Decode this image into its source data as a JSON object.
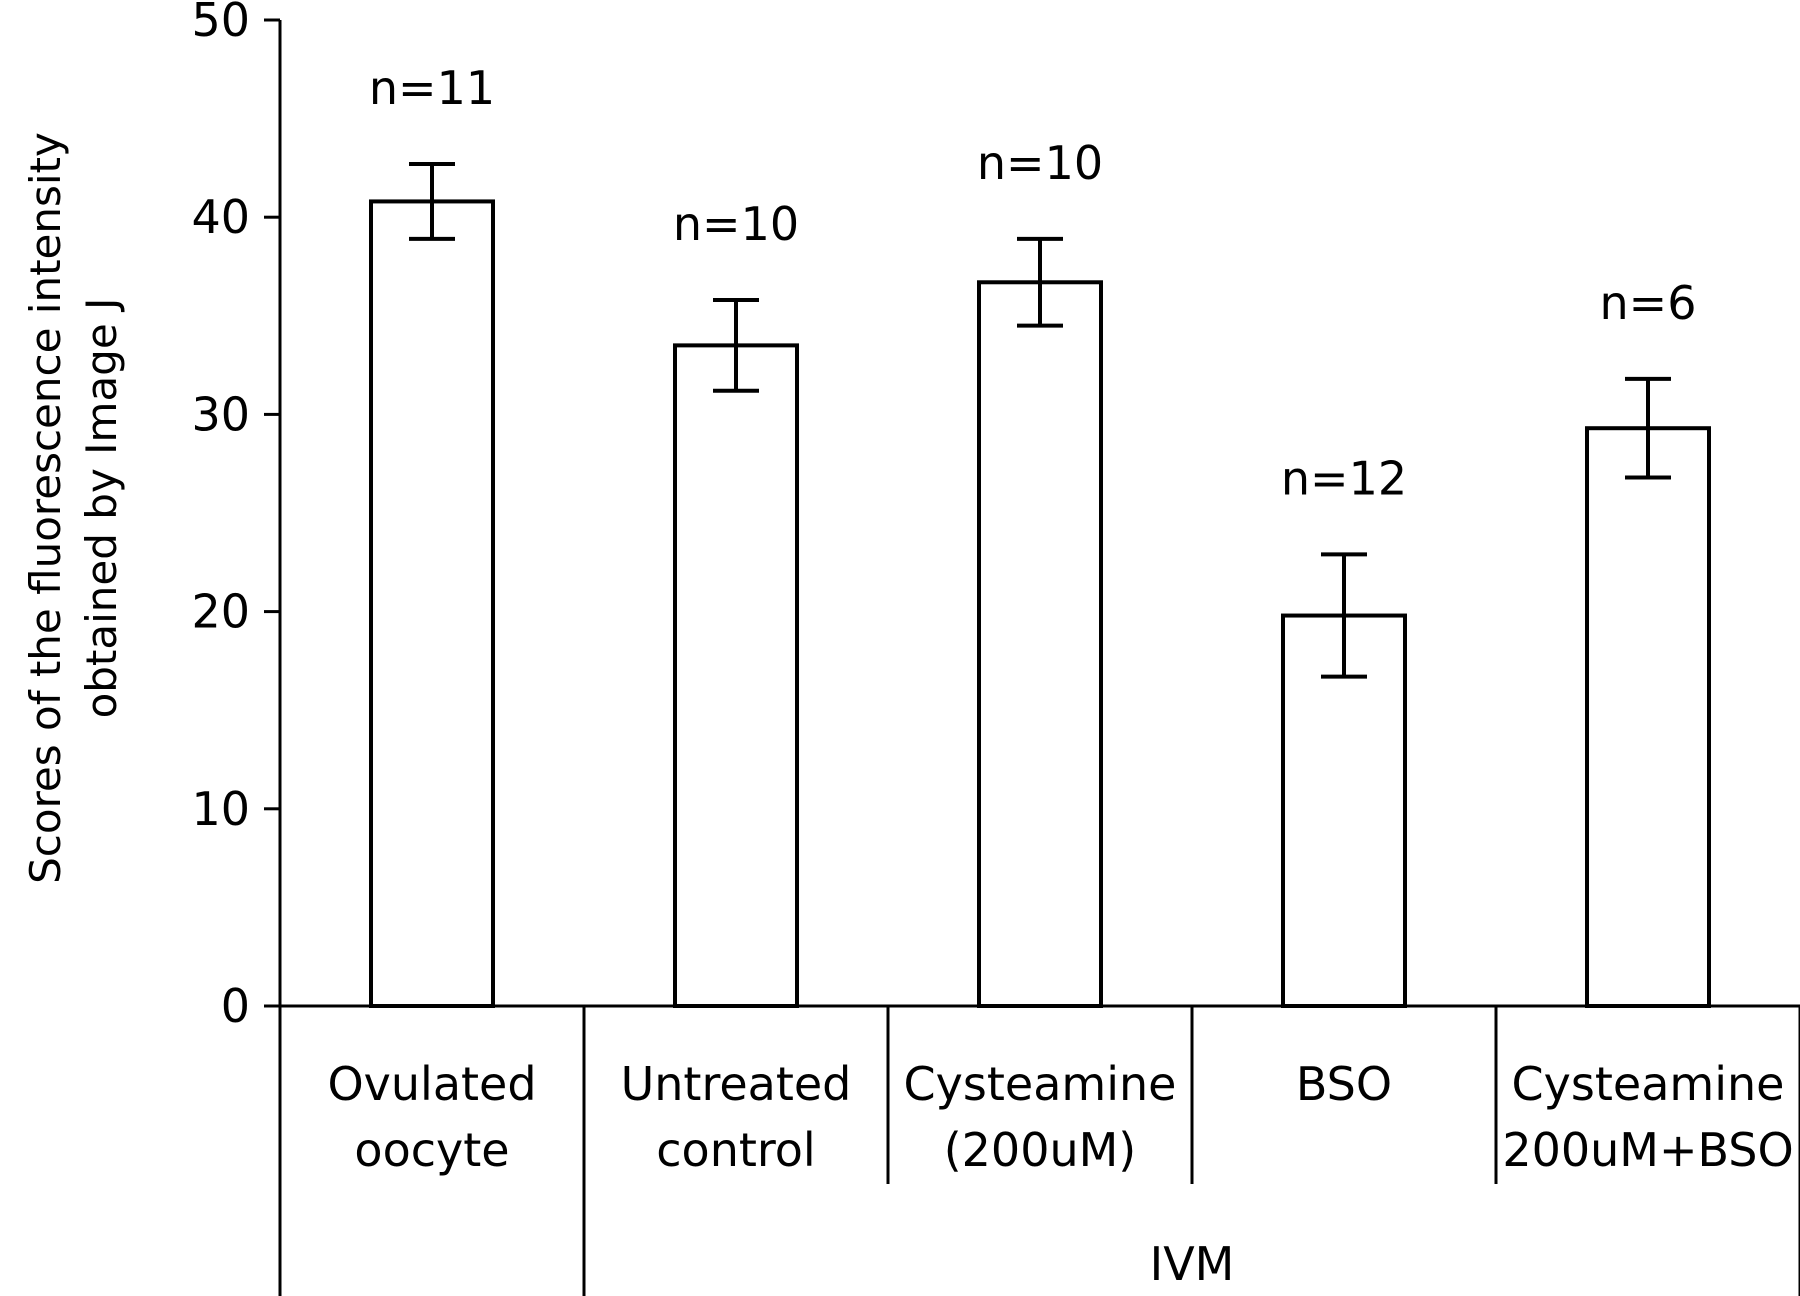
{
  "chart_data": {
    "type": "bar",
    "ylabel_lines": [
      "Scores of the fluorescence intensity",
      "obtained by Image J"
    ],
    "ylim": [
      0,
      50
    ],
    "yticks": [
      "0",
      "10",
      "20",
      "30",
      "40",
      "50"
    ],
    "grid": false,
    "categories": [
      {
        "lines": [
          "Ovulated",
          "oocyte"
        ]
      },
      {
        "lines": [
          "Untreated",
          "control"
        ]
      },
      {
        "lines": [
          "Cysteamine",
          "(200uM)"
        ]
      },
      {
        "lines": [
          "BSO"
        ]
      },
      {
        "lines": [
          "Cysteamine",
          "200uM+BSO"
        ]
      }
    ],
    "values": [
      40.8,
      33.5,
      36.7,
      19.8,
      29.3
    ],
    "errors": [
      1.9,
      2.3,
      2.2,
      3.1,
      2.5
    ],
    "n_labels": [
      "n=11",
      "n=10",
      "n=10",
      "n=12",
      "n=6"
    ],
    "group_label": "IVM",
    "colors": {
      "bar_fill": "#ffffff",
      "stroke": "#000000"
    }
  }
}
